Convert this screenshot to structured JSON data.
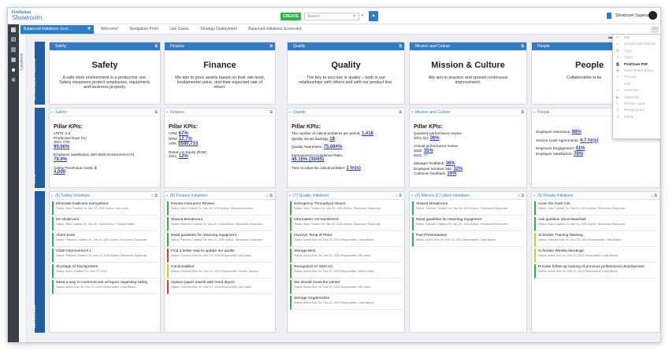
{
  "app": {
    "brand_line1": "FireNexus",
    "brand_line2": "Showroom"
  },
  "topbar": {
    "create_label": "CREATE",
    "search_placeholder": "Search",
    "username": "Showroom Superuser"
  },
  "nav": {
    "scorecard_button": "Balanced Initiatives Scor...",
    "breadcrumbs": [
      "Welcome!",
      "Navigation Point",
      "Use Cases",
      "Strategy Deployment",
      "Balanced Initiatives Scorecard"
    ],
    "dots": "…",
    "locations_label": "Locations"
  },
  "rows": {
    "pillars": "STRATEGIC PILLARS",
    "kpis": "KPIs",
    "initiatives": "INITIATIVES"
  },
  "pillars": [
    {
      "header": "Safety",
      "title": "Safety",
      "text": "A safe work environment is a productive one. Safety measures protect employees, equipment, and business property."
    },
    {
      "header": "Finance",
      "title": "Finance",
      "text": "We aim to price assets based on their risk level, fundamental value, and their expected rate of return."
    },
    {
      "header": "Quality",
      "title": "Quality",
      "text": "The key to success is quality – both in our relationships with others and with our product line."
    },
    {
      "header": "Mission and Culture",
      "title": "Mission & Culture",
      "text": "We aim to practice and spread continuous improvement."
    },
    {
      "header": "People",
      "title": "People",
      "text": "Collaboration is ke"
    }
  ],
  "kpis": {
    "safety": {
      "header": "Safety",
      "title": "Pillar KPIs:",
      "l1": "LTIFR: 2.6",
      "l2": "Productive Days (%)",
      "l3": "2021 YTD:",
      "v1": "99.66%",
      "l4": "Employee Satisfaction with Work Environment (%)",
      "v2": "79.9%",
      "l5": "Safety Prevention Costs, $",
      "v3": "4,000"
    },
    "finance": {
      "header": "Finance",
      "title": "Pillar KPIs:",
      "l1": "CPM:",
      "v1": "67%",
      "l2": "NPM:",
      "v2": "12.7%",
      "l3": "ARR:",
      "v3": "$580,733",
      "l4": "Return on Equity (ROE)",
      "l5": "2021:",
      "v4": "12%"
    },
    "quality": {
      "header": "Quality",
      "title": "Pillar KPIs:",
      "l1": "The number of critical problems per period:",
      "v1": "1,418",
      "l2": "Quality issues backlog:",
      "v2": "18",
      "l3": "Quality Awareness:",
      "v3": "75.884%",
      "l4": "Improvement Acceptance Ratio:",
      "v4": "46.15% (30/65)",
      "l5": "Time to solve the critical problem:",
      "v5": "1 hr(s)"
    },
    "mission": {
      "header": "Mission and Culture",
      "title": "Pillar KPIs:",
      "l1": "Quarterly performance review",
      "l2": "2021-Q3:",
      "v1": "36%",
      "l3": "Annual performance review",
      "l4": "2020:",
      "v2": "35%",
      "l5": "2021: ***",
      "l6": "Manager feedback:",
      "v3": "36%",
      "l7": "Employee turnover rate:",
      "v4": "12%",
      "l8": "Customer feedback:",
      "v5": "29%"
    },
    "people": {
      "header": "People",
      "l1": "Employee Assurance:",
      "v1": "88%",
      "l2": "Service Level Agreements:",
      "v2": "4.7 hr(s)",
      "l3": "Employee Engagement:",
      "v3": "41%",
      "l4": "Employee Satisfaction:",
      "v4": "78%"
    }
  },
  "initiatives": [
    {
      "header": "(6) Safety Initiatives",
      "items": [
        {
          "title": "Eliminate tradlcans everywhere",
          "meta": "Status: New   Created On: Nov 20, 2020   Author: Ana Lamb",
          "color": "green"
        },
        {
          "title": "5S showroom",
          "meta": "Status: New   Created On: Nov 20, 2020   Author: Thomas Dalton",
          "color": "green"
        },
        {
          "title": "Alarm tools",
          "meta": "Status: Planned   Created On: Jan 16, 2021   Author: Showroom Superuser",
          "color": "green"
        },
        {
          "title": "Chart Improvement 1",
          "meta": "Status: Planned   Created On: Dec 21, 2020   Author: Showroom Superuser",
          "color": "green"
        },
        {
          "title": "Shortage of Transporters",
          "meta": "Status: Active   Created On: Nov 20, 2020",
          "color": "green"
        },
        {
          "title": "Need a way to communicate all topics regarding safety",
          "meta": "Status: Active   Due On: Nov 23, 2020   Responsible: Carla Barton",
          "color": "green"
        }
      ]
    },
    {
      "header": "(8) Finance Initiatives",
      "items": [
        {
          "title": "Review Insurance Review",
          "meta": "Status: New   Created On: Nov 20, 2020   Author: Showroom Admin",
          "color": "green"
        },
        {
          "title": "Shared Breakroom",
          "meta": "Status: Planned   Created On: Nov 20, 2020   Author: Showroom Superuser",
          "color": "green"
        },
        {
          "title": "Need guideline for returning equipment",
          "meta": "Status: Planned   Created On: Nov 20, 2020   Author: Showroom Superuser",
          "color": "green"
        },
        {
          "title": "Find a better way to update our audits",
          "meta": "Status: Overdue   Due On: Nov 14, 2020   Responsible: Ana Lamb",
          "color": "red"
        },
        {
          "title": "Consumables",
          "meta": "Status: Overdue   Due On: Nov 23, 2020   Responsible: Ronnie Jackson",
          "color": "yellow"
        },
        {
          "title": "replace paper towels with hand dryers",
          "meta": "Status: Overdue   Due On: Nov 14, 2020   Responsible: Ana Lamb",
          "color": "red"
        }
      ]
    },
    {
      "header": "(7) Quality Initiatives",
      "items": [
        {
          "title": "Emergency Throughput Issues",
          "meta": "Status: New   Created On: Nov 09, 2020   Author: Showroom Superuser",
          "color": "green"
        },
        {
          "title": "Information not transferred",
          "meta": "Status: New   Created On: Nov 20, 2020   Author: Showroom Superuser",
          "color": "green"
        },
        {
          "title": "Improve Temp of Plant",
          "meta": "Status: Active   Due On: Nov 23, 2020   Responsible: Carla Barton",
          "color": "green"
        },
        {
          "title": "Storage Bins",
          "meta": "Status: Active   Due On: Nov 23, 2020   Responsible: Bill Urban",
          "color": "green"
        },
        {
          "title": "Reorganize IV Start Kit",
          "meta": "Status: Active   Due On: Nov 23, 2020   Responsible: Weber Mann",
          "color": "green"
        },
        {
          "title": "We should move the printer",
          "meta": "Status: Active   Due On: Nov 23, 2020   Responsible: Bill Urban",
          "color": "green"
        },
        {
          "title": "Storage Organization",
          "meta": "Status: Active   Due On: Nov 23, 2020   Responsible: Carla Barton",
          "color": "green"
        }
      ]
    },
    {
      "header": "(3) Mission & Culture Initiatives",
      "items": [
        {
          "title": "Shared Breakroom",
          "meta": "Status: Planned   Created On: Nov 20, 2020   Author: Showroom Superuser",
          "color": "green"
        },
        {
          "title": "Need guideline for returning equipment",
          "meta": "Status: Planned   Created On: Nov 20, 2020   Author: Showroom Superuser",
          "color": "green"
        },
        {
          "title": "Part Presentations",
          "meta": "Status: Active   Due On: Feb 22, 2021   Responsible: Carla Barton",
          "color": "green"
        }
      ]
    },
    {
      "header": "(5) People Initiatives",
      "items": [
        {
          "title": "move the trash can",
          "meta": "Status: New   Created On: Nov 20, 2020   Author: Showroom Superuser",
          "color": "green"
        },
        {
          "title": "Ask question about Baseball",
          "meta": "Status: New   Created On: Nov 20, 2020   Author: Showroom Superuser",
          "color": "green"
        },
        {
          "title": "Schedule Training Meeting",
          "meta": "Status: Overdue   Due On: Nov 23, 2020   Responsible: Carla Barton",
          "color": "yellow"
        },
        {
          "title": "Schedule Weekly Meetings",
          "meta": "Status: Active   Due On: Feb 22, 2021   Responsible: Carla Barton",
          "color": "yellow"
        },
        {
          "title": "Provide follow-up training of previous professional development",
          "meta": "Status: Active   Due On: Feb 22, 2021   Responsible: Carla Barton",
          "color": "green"
        }
      ]
    }
  ],
  "menu": [
    {
      "label": "Edit",
      "icon": "pencil-icon",
      "active": false
    },
    {
      "label": "Default Card Headers",
      "icon": "card-icon",
      "active": false
    },
    {
      "label": "Copy",
      "icon": "copy-icon",
      "active": false
    },
    {
      "label": "Share",
      "icon": "share-icon",
      "active": false
    },
    {
      "label": "Print/Save PDF",
      "icon": "print-icon",
      "active": true
    },
    {
      "label": "Make Default Board",
      "icon": "board-icon",
      "active": false
    },
    {
      "label": "Promote",
      "icon": "promote-icon",
      "active": false
    },
    {
      "label": "Hide",
      "icon": "hide-icon",
      "active": false
    },
    {
      "label": "Subscribe",
      "icon": "subscribe-icon",
      "active": false
    },
    {
      "label": "Slideshow",
      "icon": "play-icon",
      "active": false
    },
    {
      "label": "Refresh Cards",
      "icon": "refresh-icon",
      "active": false
    },
    {
      "label": "Reload Board",
      "icon": "reload-icon",
      "active": false
    },
    {
      "label": "Delete",
      "icon": "trash-icon",
      "active": false
    }
  ],
  "colors": {
    "accent": "#2f7ec5",
    "sidebar": "#3a3f46",
    "create": "#2db34a",
    "link": "#2a3cc5"
  }
}
